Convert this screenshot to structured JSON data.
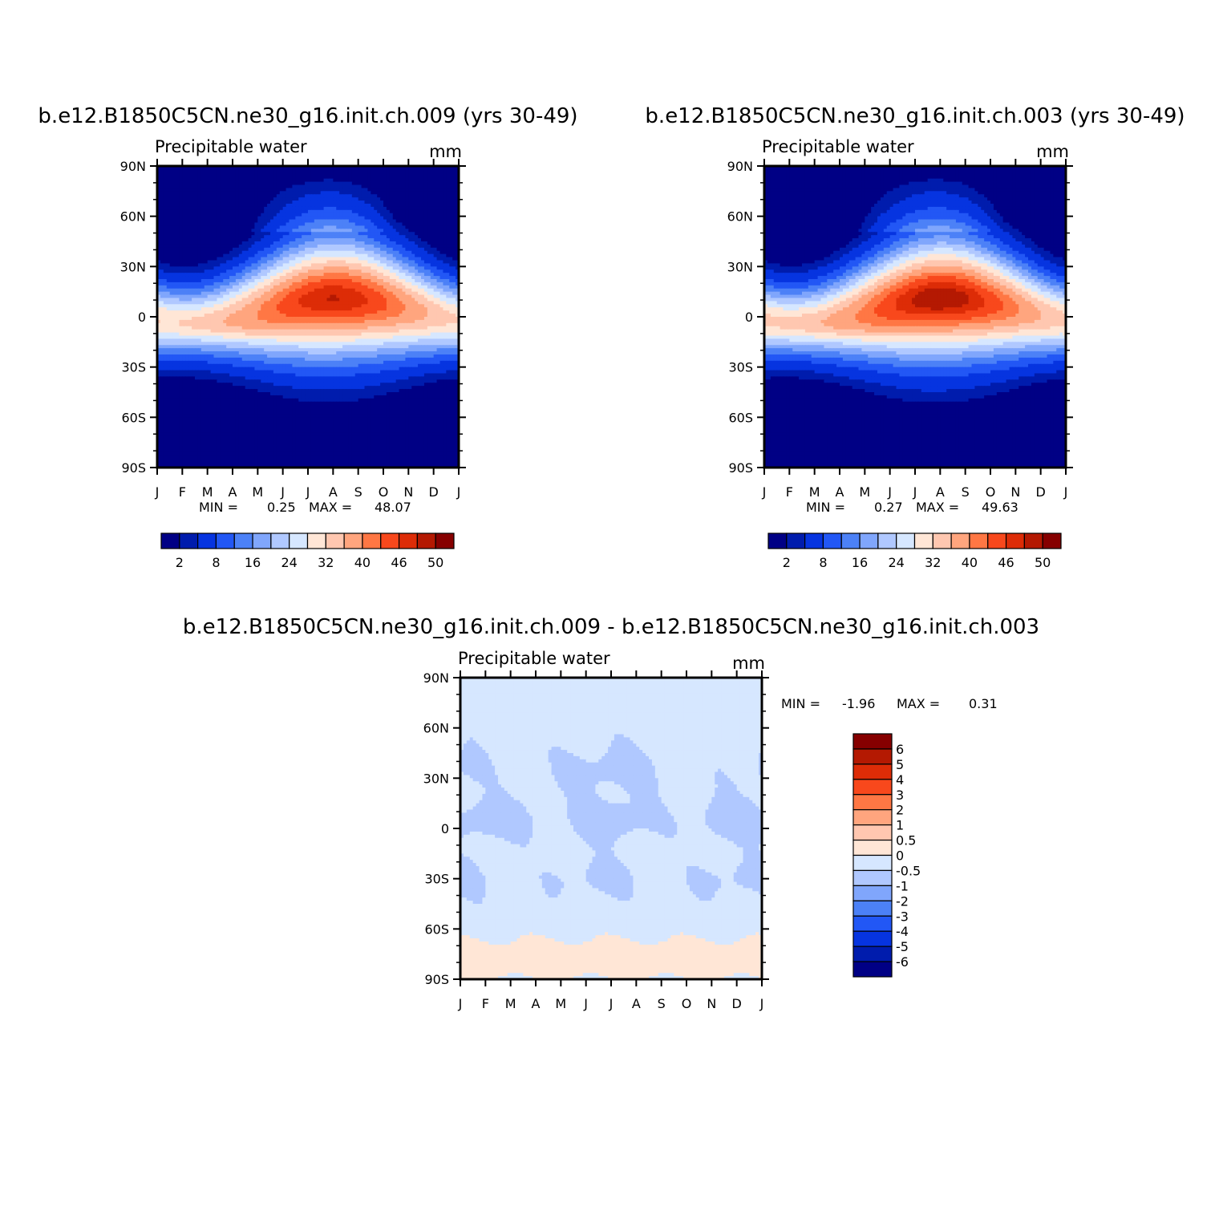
{
  "palette_abs": [
    "#000085",
    "#001cad",
    "#0634e0",
    "#2257f5",
    "#4c81f7",
    "#80a6fc",
    "#b0c8ff",
    "#d6e7ff",
    "#ffe6d6",
    "#ffc7b0",
    "#ffa57e",
    "#ff7744",
    "#f8481c",
    "#dd2c07",
    "#b41902",
    "#860000"
  ],
  "palette_diff": [
    "#000085",
    "#001cad",
    "#0634e0",
    "#2257f5",
    "#4c81f7",
    "#80a6fc",
    "#b0c8ff",
    "#d6e7ff",
    "#ffe6d6",
    "#ffc7b0",
    "#ffa57e",
    "#ff7744",
    "#f8481c",
    "#dd2c07",
    "#b41902",
    "#860000"
  ],
  "months": [
    "J",
    "F",
    "M",
    "A",
    "M",
    "J",
    "J",
    "A",
    "S",
    "O",
    "N",
    "D",
    "J"
  ],
  "lat_labels": [
    "90N",
    "60N",
    "30N",
    "0",
    "30S",
    "60S",
    "90S"
  ],
  "chart_data": [
    {
      "type": "contour",
      "title": "b.e12.B1850C5CN.ne30_g16.init.ch.009 (yrs 30-49)",
      "left_string": "Precipitable water",
      "right_string": "mm",
      "stats": {
        "min_label": "MIN =",
        "min": "0.25",
        "max_label": "MAX =",
        "max": "48.07"
      },
      "colorbar_labels": [
        "2",
        "8",
        "16",
        "24",
        "32",
        "40",
        "46",
        "50"
      ],
      "peak": 48.07,
      "sh_peak_scale": 0.92
    },
    {
      "type": "contour",
      "title": "b.e12.B1850C5CN.ne30_g16.init.ch.003 (yrs 30-49)",
      "left_string": "Precipitable water",
      "right_string": "mm",
      "stats": {
        "min_label": "MIN =",
        "min": "0.27",
        "max_label": "MAX =",
        "max": "49.63"
      },
      "colorbar_labels": [
        "2",
        "8",
        "16",
        "24",
        "32",
        "40",
        "46",
        "50"
      ],
      "peak": 49.63,
      "sh_peak_scale": 0.93
    },
    {
      "type": "contour",
      "title": "b.e12.B1850C5CN.ne30_g16.init.ch.009 - b.e12.B1850C5CN.ne30_g16.init.ch.003",
      "left_string": "Precipitable water",
      "right_string": "mm",
      "stats": {
        "min_label": "MIN =",
        "min": "-1.96",
        "max_label": "MAX =",
        "max": "0.31"
      },
      "colorbar_labels": [
        "6",
        "5",
        "4",
        "3",
        "2",
        "1",
        "0.5",
        "0",
        "-0.5",
        "-1",
        "-2",
        "-3",
        "-4",
        "-5",
        "-6"
      ],
      "diff_levels": [
        -6,
        -5,
        -4,
        -3,
        -2,
        -1,
        -0.5,
        0,
        0.5,
        1,
        2,
        3,
        4,
        5,
        6
      ]
    }
  ]
}
